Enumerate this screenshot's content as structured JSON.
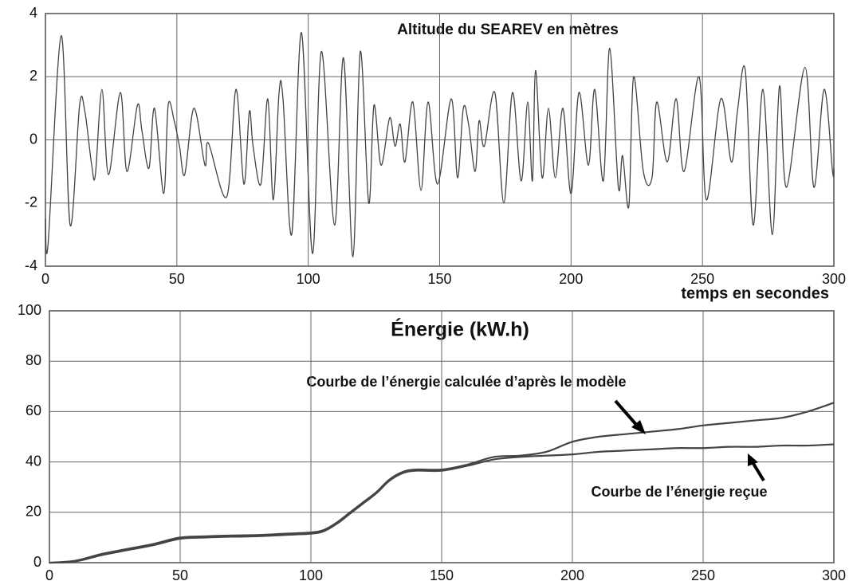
{
  "chart_data": [
    {
      "type": "line",
      "title": "Altitude du SEAREV en mètres",
      "x_label": "temps en secondes",
      "xlim": [
        0,
        300
      ],
      "ylim": [
        -4,
        4
      ],
      "xticks": [
        0,
        50,
        100,
        150,
        200,
        250,
        300
      ],
      "yticks": [
        -4,
        -2,
        0,
        2,
        4
      ],
      "grid": true,
      "series": [
        {
          "color": "#444444",
          "x": [
            0,
            1,
            6,
            9.4,
            13,
            15,
            17.6,
            19,
            21.5,
            24,
            28.5,
            31,
            35,
            36.7,
            39.4,
            41.5,
            45,
            46.7,
            49,
            51,
            53,
            56.5,
            60.7,
            62,
            69,
            72.5,
            75.5,
            77.6,
            79,
            82,
            84.6,
            86.7,
            88.9,
            90.4,
            93.7,
            97.4,
            101.6,
            105,
            110,
            113.4,
            117,
            119.8,
            123,
            125,
            127.7,
            131,
            133,
            135,
            136.8,
            139.8,
            142.9,
            145.6,
            149.2,
            154.4,
            156.8,
            159,
            161,
            163.5,
            165,
            167,
            171,
            174.4,
            177.7,
            181,
            183.5,
            185.3,
            186.5,
            189,
            191.4,
            194,
            196.9,
            200,
            203,
            206.6,
            209,
            212.3,
            214.7,
            218,
            219.6,
            222,
            223.8,
            227.5,
            230.8,
            232.6,
            236.6,
            240,
            243,
            248.7,
            251.5,
            257,
            261,
            263.3,
            266.3,
            269.3,
            273,
            276.6,
            279.3,
            282,
            289,
            292.4,
            296.3,
            299.5,
            300
          ],
          "values": [
            -2.5,
            -3.3,
            3.3,
            -2.7,
            1.1,
            0.9,
            -0.8,
            -1.1,
            1.6,
            -1.1,
            1.5,
            -1.0,
            1.1,
            0.3,
            -0.9,
            1.0,
            -1.7,
            1.1,
            0.6,
            -0.2,
            -1.1,
            1.0,
            -0.8,
            -0.1,
            -1.8,
            1.6,
            -1.4,
            0.9,
            -0.2,
            -1.4,
            1.3,
            -1.9,
            1.5,
            1.3,
            -3.0,
            3.4,
            -3.6,
            2.8,
            -2.7,
            2.6,
            -3.7,
            2.8,
            -2.0,
            1.1,
            -0.8,
            0.7,
            -0.2,
            0.5,
            -0.7,
            1.2,
            -1.6,
            1.2,
            -1.4,
            1.3,
            -1.2,
            1.0,
            0.5,
            -1.0,
            0.6,
            -0.2,
            1.5,
            -2.0,
            1.5,
            -1.3,
            1.2,
            -1.3,
            2.2,
            -1.2,
            1.0,
            -1.2,
            1.0,
            -1.7,
            1.5,
            -0.8,
            1.6,
            -1.3,
            2.9,
            -1.5,
            -0.5,
            -2.1,
            2.0,
            -1.0,
            -1.2,
            1.2,
            -0.7,
            1.3,
            -1.0,
            2.0,
            -1.9,
            1.3,
            -0.7,
            0.9,
            2.2,
            -2.7,
            1.6,
            -3.0,
            1.7,
            -1.5,
            2.3,
            -1.5,
            1.6,
            -1.0,
            -0.9
          ]
        }
      ]
    },
    {
      "type": "line",
      "title": "Énergie (kW.h)",
      "xlim": [
        0,
        300
      ],
      "ylim": [
        0,
        100
      ],
      "xticks": [
        0,
        50,
        100,
        150,
        200,
        250,
        300
      ],
      "yticks": [
        0,
        20,
        40,
        60,
        80,
        100
      ],
      "grid": true,
      "annotations": [
        "Courbe de l’énergie calculée d’après le modèle",
        "Courbe de l’énergie reçue"
      ],
      "x": [
        0,
        10,
        20,
        30,
        40,
        50,
        60,
        70,
        80,
        90,
        100,
        105,
        110,
        115,
        120,
        125,
        130,
        135,
        140,
        150,
        160,
        170,
        180,
        190,
        200,
        210,
        220,
        230,
        240,
        250,
        260,
        270,
        280,
        290,
        300
      ],
      "series": [
        {
          "color": "#444444",
          "values": [
            0,
            0.8,
            3.5,
            5.5,
            7.5,
            10,
            10.5,
            10.8,
            11,
            11.5,
            12,
            13,
            16,
            20,
            24,
            28,
            33,
            36,
            37,
            37,
            39,
            42,
            42.5,
            44,
            48,
            50,
            51,
            52,
            53,
            54.5,
            55.5,
            56.5,
            57.5,
            60,
            63.5
          ]
        },
        {
          "color": "#444444",
          "values": [
            0,
            0.5,
            3,
            5,
            7,
            9.5,
            10,
            10.3,
            10.5,
            11,
            11.5,
            12.5,
            15.5,
            19.5,
            23.5,
            27.5,
            32.5,
            35.5,
            36.5,
            36.5,
            38.5,
            41,
            42,
            42.5,
            43,
            44,
            44.5,
            45,
            45.5,
            45.5,
            46,
            46,
            46.5,
            46.5,
            47
          ]
        }
      ]
    }
  ]
}
